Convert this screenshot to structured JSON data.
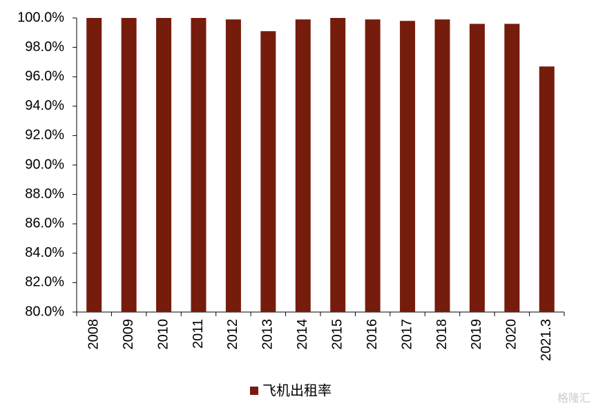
{
  "chart_data": {
    "type": "bar",
    "categories": [
      "2008",
      "2009",
      "2010",
      "2011",
      "2012",
      "2013",
      "2014",
      "2015",
      "2016",
      "2017",
      "2018",
      "2019",
      "2020",
      "2021.3"
    ],
    "series": [
      {
        "name": "飞机出租率",
        "color": "#761c0c",
        "values": [
          100,
          100,
          100,
          100,
          99.9,
          99.1,
          99.9,
          100,
          99.9,
          99.8,
          99.9,
          99.6,
          99.6,
          96.7
        ]
      }
    ],
    "ylim": [
      80,
      100
    ],
    "yticks": [
      {
        "value": 80,
        "label": "80.0%"
      },
      {
        "value": 82,
        "label": "82.0%"
      },
      {
        "value": 84,
        "label": "84.0%"
      },
      {
        "value": 86,
        "label": "86.0%"
      },
      {
        "value": 88,
        "label": "88.0%"
      },
      {
        "value": 90,
        "label": "90.0%"
      },
      {
        "value": 92,
        "label": "92.0%"
      },
      {
        "value": 94,
        "label": "94.0%"
      },
      {
        "value": 96,
        "label": "96.0%"
      },
      {
        "value": 98,
        "label": "98.0%"
      },
      {
        "value": 100,
        "label": "100.0%"
      }
    ],
    "legend": "bottom",
    "watermark": "格隆汇"
  }
}
